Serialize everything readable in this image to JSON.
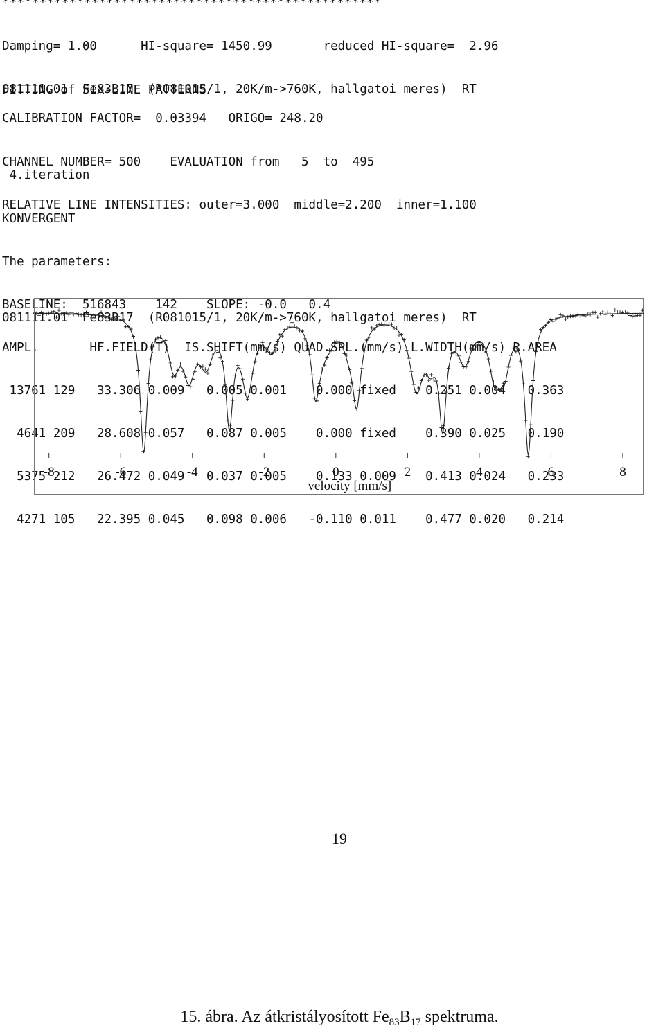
{
  "report": {
    "stars": "***************************************************",
    "header_lines": [
      "Damping= 1.00      HI-square= 1450.99       reduced HI-square=  2.96",
      "FITTING of SIX-LINE PATTERNS"
    ],
    "sample_line": "081111.01  Fe83B17  (R081015/1, 20K/m->760K, hallgatoi meres)  RT",
    "calibration_lines": [
      "CALIBRATION FACTOR=  0.03394   ORIGO= 248.20",
      "CHANNEL NUMBER= 500    EVALUATION from   5  to  495",
      "RELATIVE LINE INTENSITIES: outer=3.000  middle=2.200  inner=1.100"
    ],
    "iteration_lines": [
      " 4.iteration",
      "KONVERGENT",
      "The parameters:",
      "BASELINE:  516843    142    SLOPE: -0.0   0.4",
      "AMPL.       HF.FIELD(T)  IS.SHIFT(mm/s) QUAD.SPL.(mm/s) L.WIDTH(mm/s) R.AREA",
      " 13761 129   33.306 0.009   0.005 0.001    0.000 fixed    0.251 0.004   0.363",
      "  4641 209   28.608 0.057   0.087 0.005    0.000 fixed    0.390 0.025   0.190",
      "  5375 212   26.472 0.049   0.037 0.005    0.133 0.009    0.413 0.024   0.233",
      "  4271 105   22.395 0.045   0.098 0.006   -0.110 0.011    0.477 0.020   0.214"
    ],
    "chart_title_line": "081111.01  Fe83B17  (R081015/1, 20K/m->760K, hallgatoi meres)  RT"
  },
  "chart_data": {
    "type": "scatter",
    "xlabel": "velocity  [mm/s]",
    "ylabel": "",
    "xlim": [
      -8.4,
      8.6
    ],
    "x_ticks": [
      "-8",
      "-6",
      "-4",
      "-2",
      "0",
      "2",
      "4",
      "6",
      "8"
    ],
    "baseline": 516843,
    "components": [
      {
        "hf_field_T": 33.306,
        "is_shift": 0.005,
        "quad_spl": 0.0,
        "width": 0.251,
        "rel_area": 0.363
      },
      {
        "hf_field_T": 28.608,
        "is_shift": 0.087,
        "quad_spl": 0.0,
        "width": 0.39,
        "rel_area": 0.19
      },
      {
        "hf_field_T": 26.472,
        "is_shift": 0.037,
        "quad_spl": 0.133,
        "width": 0.413,
        "rel_area": 0.233
      },
      {
        "hf_field_T": 22.395,
        "is_shift": 0.098,
        "quad_spl": -0.11,
        "width": 0.477,
        "rel_area": 0.214
      }
    ],
    "line_intensities": {
      "outer": 3.0,
      "middle": 2.2,
      "inner": 1.1
    },
    "series": [
      {
        "style": "markers +"
      },
      {
        "style": "solid line"
      }
    ],
    "grid": false
  },
  "page": {
    "number": "19",
    "caption_prefix": "15. ábra. Az átkristályosított Fe",
    "caption_sub1": "83",
    "caption_mid": "B",
    "caption_sub2": "17",
    "caption_suffix": " spektruma."
  }
}
